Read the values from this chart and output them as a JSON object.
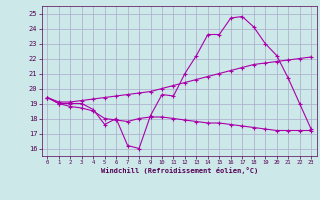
{
  "title": "",
  "xlabel": "Windchill (Refroidissement éolien,°C)",
  "bg_color": "#cce8e8",
  "line_color": "#aa00aa",
  "grid_color": "#aaaacc",
  "x_ticks": [
    0,
    1,
    2,
    3,
    4,
    5,
    6,
    7,
    8,
    9,
    10,
    11,
    12,
    13,
    14,
    15,
    16,
    17,
    18,
    19,
    20,
    21,
    22,
    23
  ],
  "y_ticks": [
    16,
    17,
    18,
    19,
    20,
    21,
    22,
    23,
    24,
    25
  ],
  "xlim": [
    -0.5,
    23.5
  ],
  "ylim": [
    15.5,
    25.5
  ],
  "series": [
    {
      "x": [
        0,
        1,
        2,
        3,
        4,
        5,
        6,
        7,
        8,
        9,
        10,
        11,
        12,
        13,
        14,
        15,
        16,
        17,
        18,
        19,
        20,
        21,
        22,
        23
      ],
      "y": [
        19.4,
        19.0,
        19.0,
        19.0,
        18.6,
        17.6,
        18.0,
        16.2,
        16.0,
        18.2,
        19.6,
        19.5,
        21.0,
        22.2,
        23.6,
        23.6,
        24.7,
        24.8,
        24.1,
        23.0,
        22.2,
        20.7,
        19.0,
        17.3
      ]
    },
    {
      "x": [
        0,
        1,
        2,
        3,
        4,
        5,
        6,
        7,
        8,
        9,
        10,
        11,
        12,
        13,
        14,
        15,
        16,
        17,
        18,
        19,
        20,
        21,
        22,
        23
      ],
      "y": [
        19.4,
        19.1,
        19.1,
        19.2,
        19.3,
        19.4,
        19.5,
        19.6,
        19.7,
        19.8,
        20.0,
        20.2,
        20.4,
        20.6,
        20.8,
        21.0,
        21.2,
        21.4,
        21.6,
        21.7,
        21.8,
        21.9,
        22.0,
        22.1
      ]
    },
    {
      "x": [
        0,
        1,
        2,
        3,
        4,
        5,
        6,
        7,
        8,
        9,
        10,
        11,
        12,
        13,
        14,
        15,
        16,
        17,
        18,
        19,
        20,
        21,
        22,
        23
      ],
      "y": [
        19.4,
        19.0,
        18.8,
        18.7,
        18.5,
        18.0,
        17.9,
        17.8,
        18.0,
        18.1,
        18.1,
        18.0,
        17.9,
        17.8,
        17.7,
        17.7,
        17.6,
        17.5,
        17.4,
        17.3,
        17.2,
        17.2,
        17.2,
        17.2
      ]
    }
  ]
}
